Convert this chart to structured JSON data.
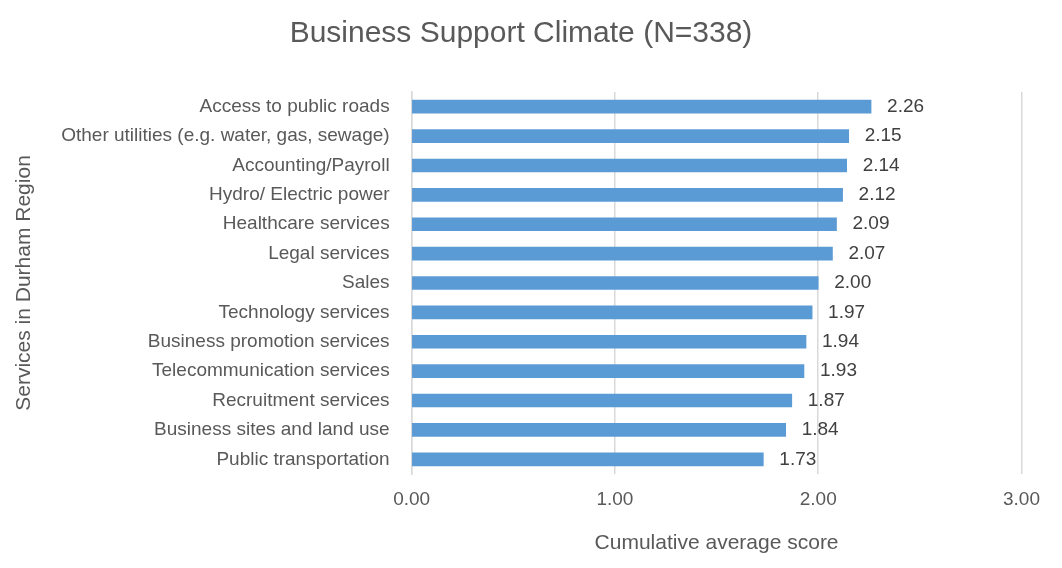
{
  "chart_data": {
    "type": "bar",
    "orientation": "horizontal",
    "title": "Business Support Climate (N=338)",
    "xlabel": "Cumulative average score",
    "ylabel": "Services in Durham Region",
    "categories": [
      "Access to public roads",
      "Other utilities (e.g. water, gas, sewage)",
      "Accounting/Payroll",
      "Hydro/ Electric power",
      "Healthcare services",
      "Legal services",
      "Sales",
      "Technology services",
      "Business promotion services",
      "Telecommunication services",
      "Recruitment services",
      "Business sites and land use",
      "Public transportation"
    ],
    "values": [
      2.26,
      2.15,
      2.14,
      2.12,
      2.09,
      2.07,
      2.0,
      1.97,
      1.94,
      1.93,
      1.87,
      1.84,
      1.73
    ],
    "value_labels": [
      "2.26",
      "2.15",
      "2.14",
      "2.12",
      "2.09",
      "2.07",
      "2.00",
      "1.97",
      "1.94",
      "1.93",
      "1.87",
      "1.84",
      "1.73"
    ],
    "color": "#5b9bd5",
    "xlim": [
      0,
      3
    ],
    "xticks": [
      {
        "value": 0,
        "label": "0.00"
      },
      {
        "value": 1,
        "label": "1.00"
      },
      {
        "value": 2,
        "label": "2.00"
      },
      {
        "value": 3,
        "label": "3.00"
      }
    ],
    "grid": "x",
    "legend": false
  }
}
